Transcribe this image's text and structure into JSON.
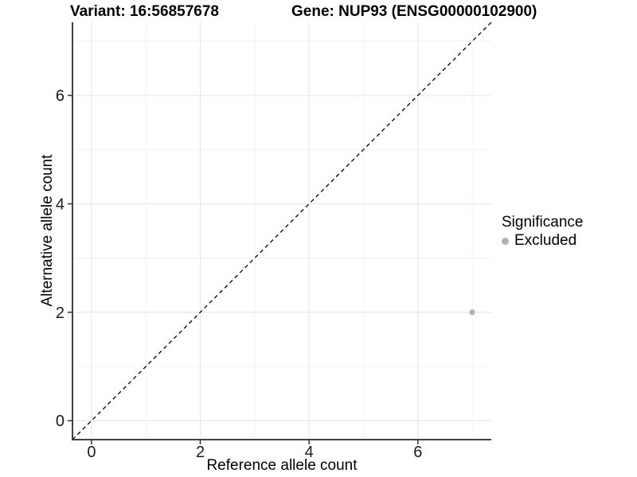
{
  "header": {
    "variant_title": "Variant: 16:56857678",
    "gene_title": "Gene: NUP93 (ENSG00000102900)"
  },
  "chart_data": {
    "type": "scatter",
    "title_variant": "Variant: 16:56857678",
    "title_gene": "Gene: NUP93 (ENSG00000102900)",
    "xlabel": "Reference allele count",
    "ylabel": "Alternative allele count",
    "xlim": [
      -0.35,
      7.35
    ],
    "ylim": [
      -0.35,
      7.35
    ],
    "x_ticks": [
      0,
      2,
      4,
      6
    ],
    "y_ticks": [
      0,
      2,
      4,
      6
    ],
    "x_minor_ticks": [
      1,
      3,
      5,
      7
    ],
    "y_minor_ticks": [
      1,
      3,
      5,
      7
    ],
    "grid": true,
    "points": [
      {
        "x": 7,
        "y": 2,
        "significance": "Excluded"
      }
    ],
    "reference_line": {
      "type": "identity",
      "style": "dashed"
    },
    "legend": {
      "title": "Significance",
      "position": "right",
      "items": [
        {
          "label": "Excluded",
          "color": "#b3b3b3"
        }
      ]
    }
  },
  "colors": {
    "background": "#ffffff",
    "point": "#b3b3b3",
    "grid_major": "#e8e8e8",
    "grid_minor": "#f4f4f4",
    "axis_line": "#404040",
    "tick_mark": "#333333",
    "tick_label": "#1a1a1a",
    "reference_line": "#000000"
  }
}
